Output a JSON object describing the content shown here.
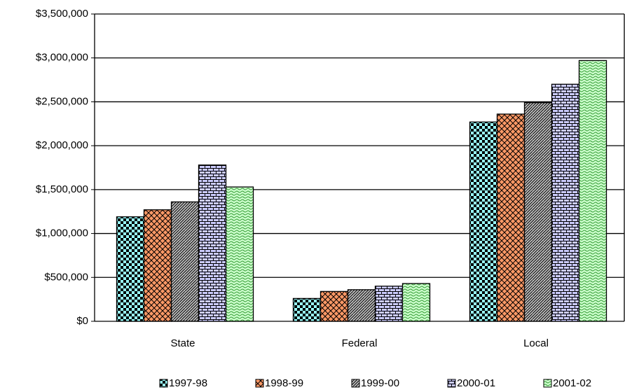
{
  "chart_data": {
    "type": "bar",
    "categories": [
      "State",
      "Federal",
      "Local"
    ],
    "series": [
      {
        "name": "1997-98",
        "color": "#99ffff",
        "values": [
          1190000,
          260000,
          2270000
        ]
      },
      {
        "name": "1998-99",
        "color": "#ff9966",
        "values": [
          1270000,
          340000,
          2360000
        ]
      },
      {
        "name": "1999-00",
        "color": "#c0c0c0",
        "values": [
          1360000,
          360000,
          2490000
        ]
      },
      {
        "name": "2000-01",
        "color": "#ccccff",
        "values": [
          1780000,
          400000,
          2700000
        ]
      },
      {
        "name": "2001-02",
        "color": "#ccffcc",
        "values": [
          1530000,
          430000,
          2970000
        ]
      }
    ],
    "ylim": [
      0,
      3500000
    ],
    "yticks": [
      {
        "value": 0,
        "label": "$0"
      },
      {
        "value": 500000,
        "label": "$500,000"
      },
      {
        "value": 1000000,
        "label": "$1,000,000"
      },
      {
        "value": 1500000,
        "label": "$1,500,000"
      },
      {
        "value": 2000000,
        "label": "$2,000,000"
      },
      {
        "value": 2500000,
        "label": "$2,500,000"
      },
      {
        "value": 3000000,
        "label": "$3,000,000"
      },
      {
        "value": 3500000,
        "label": "$3,500,000"
      }
    ],
    "grid": true,
    "legend": "bottom"
  }
}
